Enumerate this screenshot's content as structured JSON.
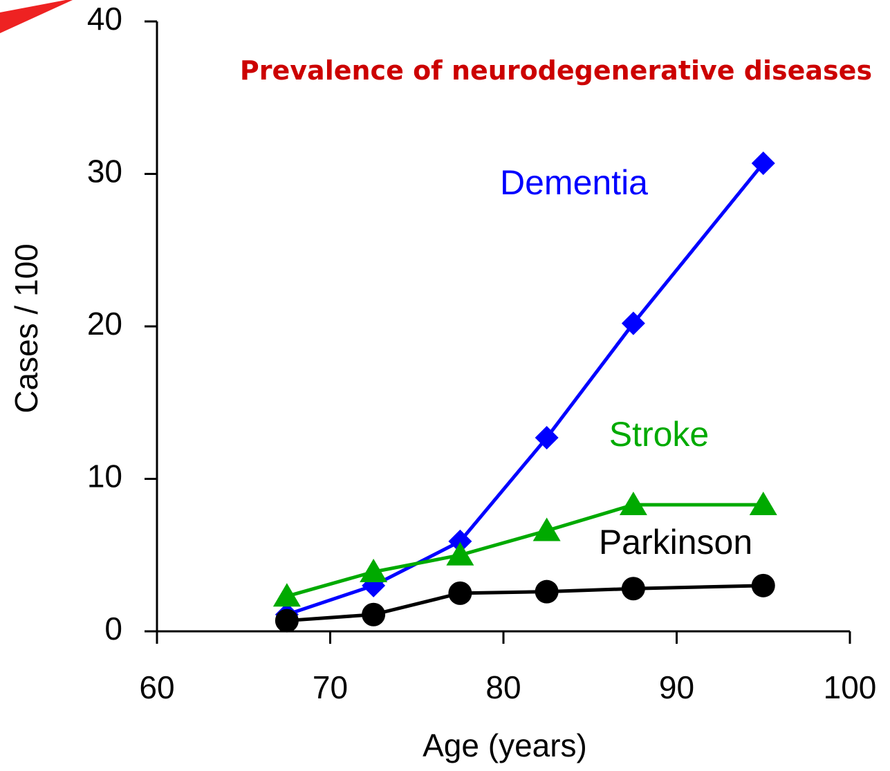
{
  "chart_data": {
    "type": "line",
    "title": "Prevalence of neurodegenerative diseases",
    "x_label": "Age (years)",
    "y_label": "Cases / 100",
    "xlim": [
      60,
      100
    ],
    "xticks": [
      60,
      70,
      80,
      90,
      100
    ],
    "ylim": [
      0,
      40
    ],
    "yticks": [
      0,
      10,
      20,
      30,
      40
    ],
    "series": [
      {
        "name": "Dementia",
        "color": "#0000ff",
        "marker": "diamond",
        "x": [
          67.5,
          72.5,
          77.5,
          82.5,
          87.5,
          95
        ],
        "values": [
          1.1,
          3.0,
          5.9,
          12.7,
          20.2,
          30.7
        ]
      },
      {
        "name": "Stroke",
        "color": "#00aa00",
        "marker": "triangle",
        "x": [
          67.5,
          72.5,
          77.5,
          82.5,
          87.5,
          95
        ],
        "values": [
          2.3,
          3.9,
          5.0,
          6.6,
          8.3,
          8.3
        ]
      },
      {
        "name": "Parkinson",
        "color": "#000000",
        "marker": "circle",
        "x": [
          67.5,
          72.5,
          77.5,
          82.5,
          87.5,
          95
        ],
        "values": [
          0.7,
          1.1,
          2.5,
          2.6,
          2.8,
          3.0
        ]
      }
    ]
  }
}
